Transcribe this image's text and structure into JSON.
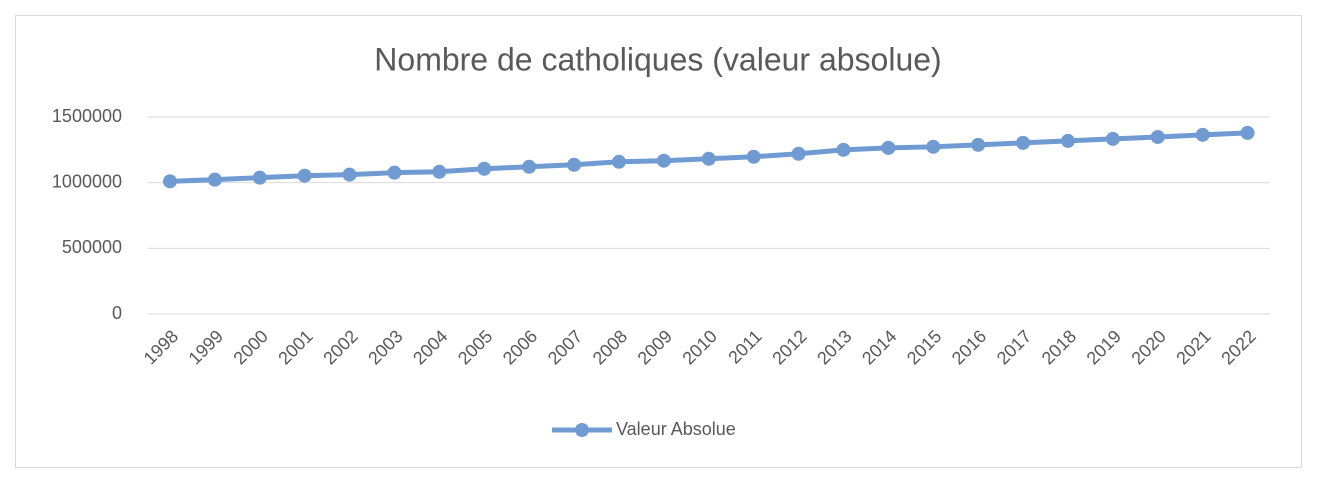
{
  "chart_data": {
    "type": "line",
    "title": "Nombre de catholiques (valeur absolue)",
    "categories": [
      "1998",
      "1999",
      "2000",
      "2001",
      "2002",
      "2003",
      "2004",
      "2005",
      "2006",
      "2007",
      "2008",
      "2009",
      "2010",
      "2011",
      "2012",
      "2013",
      "2014",
      "2015",
      "2016",
      "2017",
      "2018",
      "2019",
      "2020",
      "2021",
      "2022"
    ],
    "series": [
      {
        "name": "Valeur Absolue",
        "color": "#6f9bd2",
        "values": [
          1010000,
          1023000,
          1038000,
          1053000,
          1061000,
          1076000,
          1083000,
          1106000,
          1121000,
          1136000,
          1159000,
          1167000,
          1182000,
          1197000,
          1220000,
          1250000,
          1265000,
          1273000,
          1288000,
          1303000,
          1318000,
          1333000,
          1348000,
          1364000,
          1379000
        ]
      }
    ],
    "ylim": [
      0,
      1500000
    ],
    "yticks": [
      0,
      500000,
      1000000,
      1500000
    ],
    "grid": true
  }
}
